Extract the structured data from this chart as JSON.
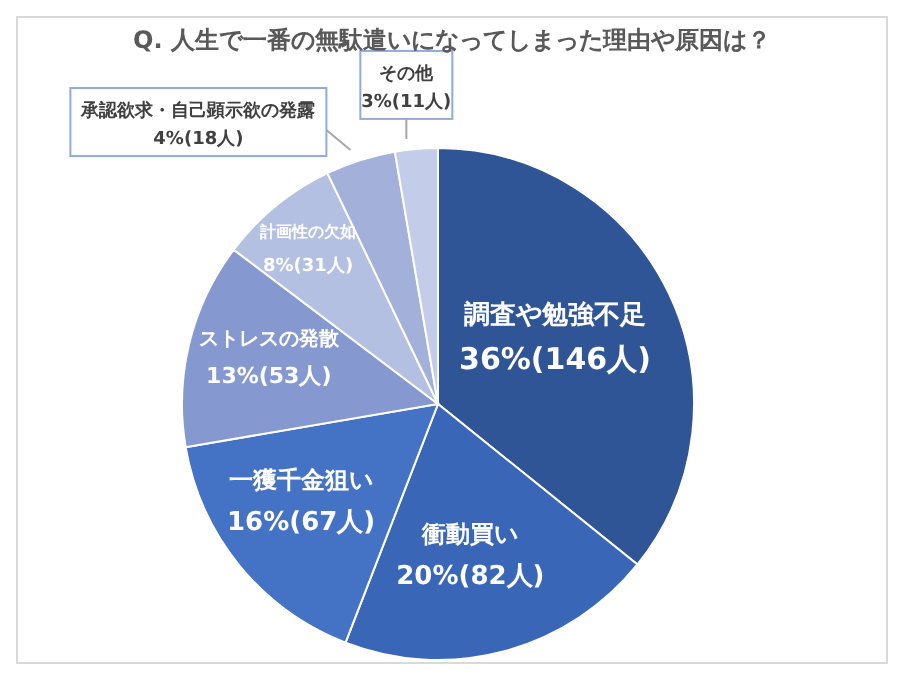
{
  "chart_data": {
    "type": "pie",
    "title": "Q. 人生で一番の無駄遣いになってしまった理由や原因は？",
    "categories": [
      "調査や勉強不足",
      "衝動買い",
      "一獲千金狙い",
      "ストレスの発散",
      "計画性の欠如",
      "承認欲求・自己顕示欲の発露",
      "その他"
    ],
    "values": [
      146,
      82,
      67,
      53,
      31,
      18,
      11
    ],
    "value_labels": [
      "36%(146人)",
      "20%(82人)",
      "16%(67人)",
      "13%(53人)",
      "8%(31人)",
      "4%(18人)",
      "3%(11人)"
    ],
    "colors": [
      "#2f5597",
      "#3a66b8",
      "#4472c4",
      "#8598d0",
      "#b4c0e2",
      "#a3b1da",
      "#c3cce9"
    ]
  }
}
